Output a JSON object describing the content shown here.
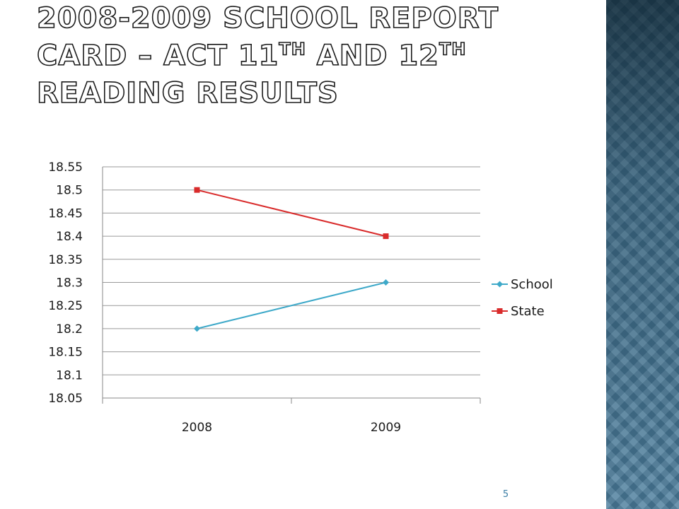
{
  "title": {
    "part1": "2008-2009 School Report Card – ACT 11",
    "sup1": "th",
    "part2": " and 12",
    "sup2": "th",
    "part3": " Reading Results"
  },
  "page_number": "5",
  "chart_data": {
    "type": "line",
    "categories": [
      "2008",
      "2009"
    ],
    "series": [
      {
        "name": "School",
        "values": [
          18.2,
          18.3
        ],
        "color": "#3ea9c9",
        "marker": "diamond"
      },
      {
        "name": "State",
        "values": [
          18.5,
          18.4
        ],
        "color": "#d92b2b",
        "marker": "square"
      }
    ],
    "yticks": [
      "18.05",
      "18.1",
      "18.15",
      "18.2",
      "18.25",
      "18.3",
      "18.35",
      "18.4",
      "18.45",
      "18.5",
      "18.55"
    ],
    "ylim": [
      18.05,
      18.55
    ],
    "grid": true,
    "legend": "right",
    "xlabel": "",
    "ylabel": "",
    "colors": {
      "grid": "#9a9a9a",
      "axis": "#8a8a8a"
    }
  }
}
